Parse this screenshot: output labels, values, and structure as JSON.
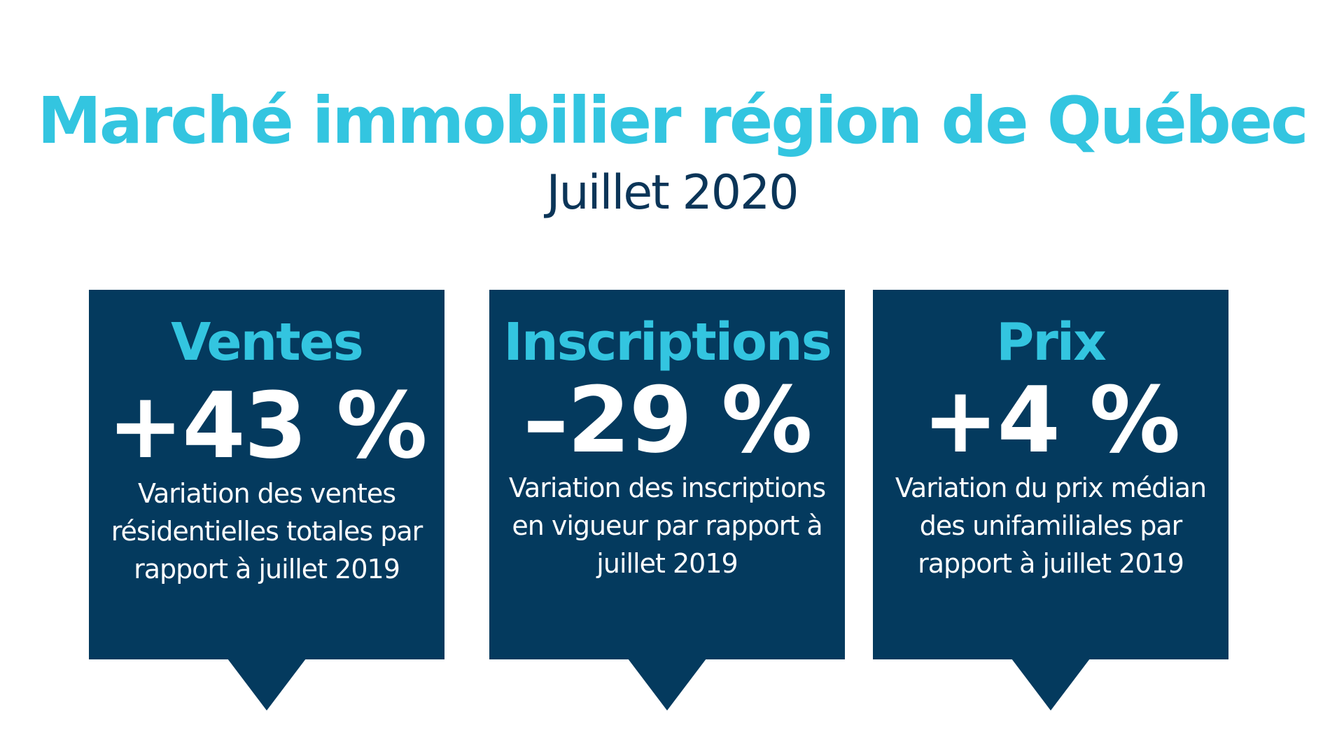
{
  "header": {
    "title": "Marché immobilier région de Québec",
    "subtitle": "Juillet 2020"
  },
  "colors": {
    "accent": "#33c5e0",
    "navy": "#043a5e",
    "subtitle": "#0b3558",
    "background": "#ffffff"
  },
  "cards": [
    {
      "heading": "Ventes",
      "value": "+43 %",
      "description": "Variation des ventes résidentielles totales par rapport à juillet 2019"
    },
    {
      "heading": "Inscriptions",
      "value": "–29 %",
      "description": "Variation des inscriptions en vigueur par rapport à juillet 2019"
    },
    {
      "heading": "Prix",
      "value": "+4 %",
      "description": "Variation du prix médian des unifamiliales par rapport à juillet 2019"
    }
  ]
}
